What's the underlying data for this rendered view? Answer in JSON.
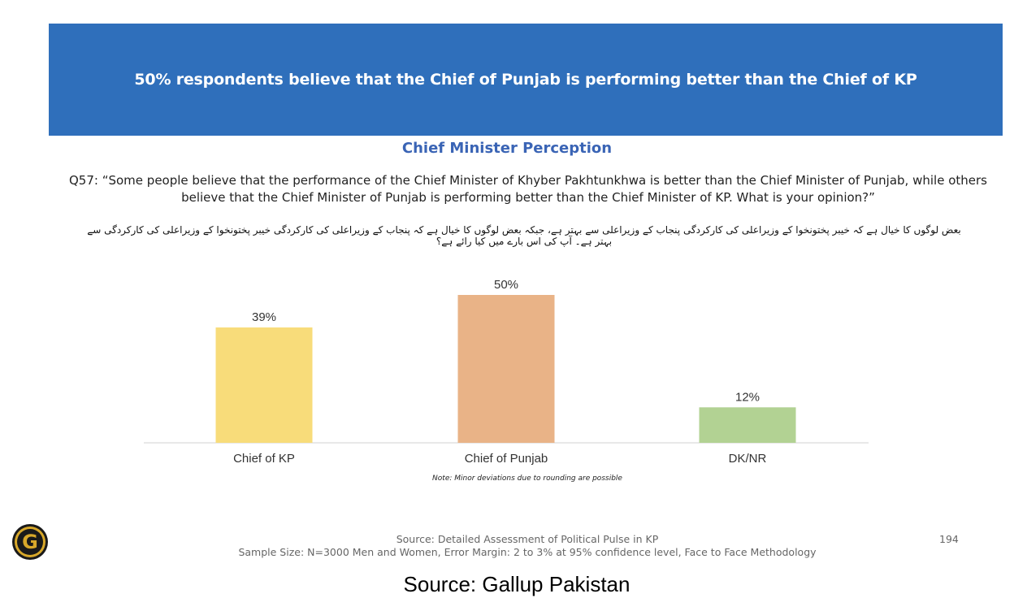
{
  "banner": {
    "text": "50% respondents believe that the Chief of Punjab is performing better than the Chief of KP"
  },
  "subtitle": "Chief Minister Perception",
  "question": {
    "line1": "Q57: “Some people believe that the performance of the Chief Minister of Khyber Pakhtunkhwa is better than the Chief Minister of Punjab, while others",
    "line2": "believe that the Chief Minister of Punjab is performing better than the Chief Minister of KP. What is your opinion?”"
  },
  "urdu_question": "بعض لوگوں کا خیال ہے کہ خیبر پختونخوا کے وزیراعلی کی کارکردگی پنجاب کے وزیراعلی سے بہتر ہے، جبکہ بعض لوگوں کا خیال ہے کہ پنجاب کے وزیراعلی کی کارکردگی خیبر پختونخوا کے وزیراعلی کی کارکردگی سے بہتر ہے۔ آپ کی اس بارے میں کیا رائے ہے؟",
  "chart_data": {
    "type": "bar",
    "categories": [
      "Chief of KP",
      "Chief of Punjab",
      "DK/NR"
    ],
    "values": [
      39,
      50,
      12
    ],
    "value_labels": [
      "39%",
      "50%",
      "12%"
    ],
    "colors": [
      "#f8dc7a",
      "#e9b387",
      "#b2d293"
    ],
    "ylim": [
      0,
      50
    ],
    "grid": false,
    "legend": "none"
  },
  "note": "Note: Minor deviations due to rounding are possible",
  "footer": {
    "source": "Source: Detailed Assessment of Political Pulse in KP",
    "sample": "Sample Size: N=3000 Men and Women, Error Margin: 2 to 3% at 95% confidence level, Face to Face Methodology",
    "page_number": "194"
  },
  "caption": "Source: Gallup Pakistan",
  "logo": {
    "icon": "gallup-logo-icon",
    "letter": "G",
    "colors": [
      "#d8a82a",
      "#1a1a1a"
    ]
  }
}
